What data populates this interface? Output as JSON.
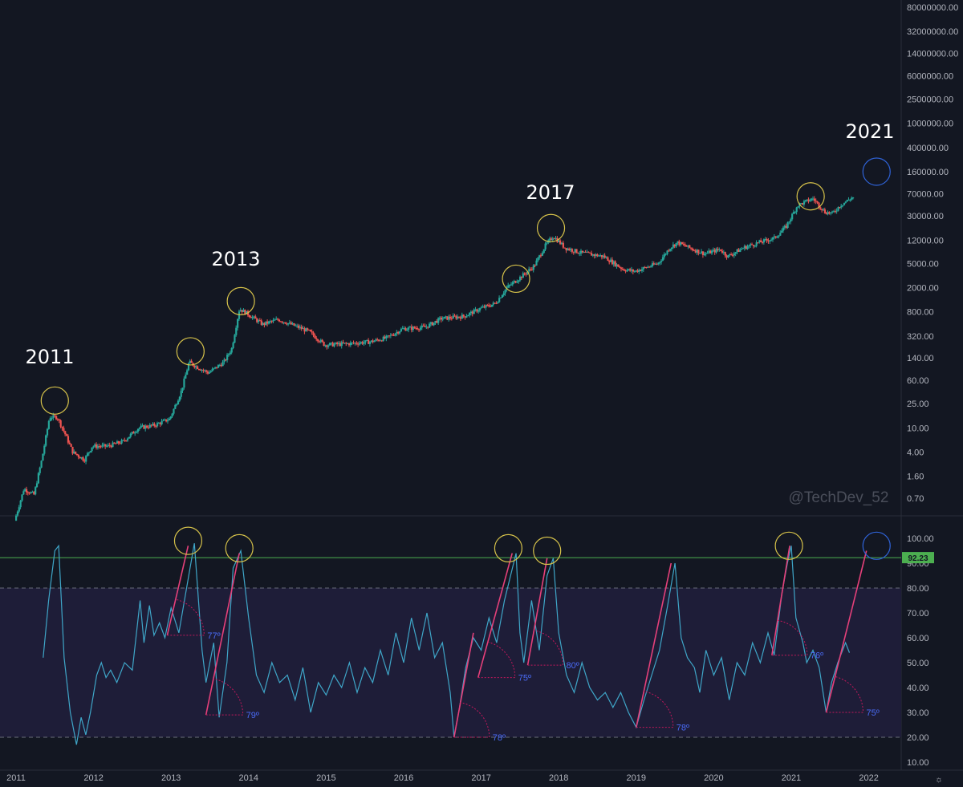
{
  "chart_data": [
    {
      "type": "candlestick",
      "title": "",
      "scale": "log",
      "y_ticks": [
        "80000000.00",
        "32000000.00",
        "14000000.00",
        "6000000.00",
        "2500000.00",
        "1000000.00",
        "400000.00",
        "160000.00",
        "70000.00",
        "30000.00",
        "12000.00",
        "5000.00",
        "2000.00",
        "800.00",
        "320.00",
        "140.00",
        "60.00",
        "25.00",
        "10.00",
        "4.00",
        "1.60",
        "0.70"
      ],
      "x_ticks": [
        "2011",
        "2012",
        "2013",
        "2014",
        "2015",
        "2016",
        "2017",
        "2018",
        "2019",
        "2020",
        "2021",
        "2022"
      ],
      "annotations": [
        "2011",
        "2013",
        "2017",
        "2021"
      ],
      "watermark": "@TechDev_52",
      "anchors": [
        {
          "t": 2011.0,
          "v": 0.3
        },
        {
          "t": 2011.12,
          "v": 1.0
        },
        {
          "t": 2011.25,
          "v": 0.8
        },
        {
          "t": 2011.35,
          "v": 3.0
        },
        {
          "t": 2011.45,
          "v": 15
        },
        {
          "t": 2011.55,
          "v": 15
        },
        {
          "t": 2011.65,
          "v": 8
        },
        {
          "t": 2011.75,
          "v": 4
        },
        {
          "t": 2011.9,
          "v": 3
        },
        {
          "t": 2012.0,
          "v": 5
        },
        {
          "t": 2012.2,
          "v": 5
        },
        {
          "t": 2012.4,
          "v": 6
        },
        {
          "t": 2012.6,
          "v": 10
        },
        {
          "t": 2012.8,
          "v": 11
        },
        {
          "t": 2013.0,
          "v": 14
        },
        {
          "t": 2013.15,
          "v": 40
        },
        {
          "t": 2013.25,
          "v": 120
        },
        {
          "t": 2013.35,
          "v": 100
        },
        {
          "t": 2013.5,
          "v": 80
        },
        {
          "t": 2013.7,
          "v": 120
        },
        {
          "t": 2013.8,
          "v": 200
        },
        {
          "t": 2013.9,
          "v": 900
        },
        {
          "t": 2014.0,
          "v": 750
        },
        {
          "t": 2014.2,
          "v": 500
        },
        {
          "t": 2014.4,
          "v": 600
        },
        {
          "t": 2014.6,
          "v": 480
        },
        {
          "t": 2014.8,
          "v": 380
        },
        {
          "t": 2015.0,
          "v": 230
        },
        {
          "t": 2015.3,
          "v": 240
        },
        {
          "t": 2015.6,
          "v": 260
        },
        {
          "t": 2015.8,
          "v": 300
        },
        {
          "t": 2016.0,
          "v": 420
        },
        {
          "t": 2016.3,
          "v": 450
        },
        {
          "t": 2016.5,
          "v": 620
        },
        {
          "t": 2016.8,
          "v": 680
        },
        {
          "t": 2017.0,
          "v": 900
        },
        {
          "t": 2017.2,
          "v": 1100
        },
        {
          "t": 2017.35,
          "v": 2000
        },
        {
          "t": 2017.5,
          "v": 2800
        },
        {
          "t": 2017.7,
          "v": 4500
        },
        {
          "t": 2017.85,
          "v": 10000
        },
        {
          "t": 2017.95,
          "v": 14000
        },
        {
          "t": 2018.1,
          "v": 9000
        },
        {
          "t": 2018.3,
          "v": 7500
        },
        {
          "t": 2018.6,
          "v": 6500
        },
        {
          "t": 2018.85,
          "v": 4000
        },
        {
          "t": 2019.0,
          "v": 3700
        },
        {
          "t": 2019.3,
          "v": 5000
        },
        {
          "t": 2019.45,
          "v": 9000
        },
        {
          "t": 2019.55,
          "v": 11000
        },
        {
          "t": 2019.75,
          "v": 8500
        },
        {
          "t": 2019.9,
          "v": 7200
        },
        {
          "t": 2020.1,
          "v": 8500
        },
        {
          "t": 2020.2,
          "v": 6500
        },
        {
          "t": 2020.4,
          "v": 9000
        },
        {
          "t": 2020.6,
          "v": 11000
        },
        {
          "t": 2020.8,
          "v": 13000
        },
        {
          "t": 2020.95,
          "v": 20000
        },
        {
          "t": 2021.1,
          "v": 45000
        },
        {
          "t": 2021.3,
          "v": 58000
        },
        {
          "t": 2021.45,
          "v": 35000
        },
        {
          "t": 2021.55,
          "v": 33000
        },
        {
          "t": 2021.65,
          "v": 45000
        },
        {
          "t": 2021.8,
          "v": 60000
        }
      ],
      "highlight_circles": [
        {
          "t": 2011.5,
          "v": 28,
          "color": "#d6c24a"
        },
        {
          "t": 2013.25,
          "v": 180,
          "color": "#d6c24a"
        },
        {
          "t": 2013.9,
          "v": 1200,
          "color": "#d6c24a"
        },
        {
          "t": 2017.45,
          "v": 2800,
          "color": "#d6c24a"
        },
        {
          "t": 2017.9,
          "v": 19000,
          "color": "#d6c24a"
        },
        {
          "t": 2021.25,
          "v": 63000,
          "color": "#d6c24a"
        },
        {
          "t": 2022.1,
          "v": 160000,
          "color": "#2f63d8"
        }
      ]
    },
    {
      "type": "line",
      "title": "",
      "ylim": [
        10,
        105
      ],
      "y_ticks": [
        "100.00",
        "90.00",
        "80.00",
        "70.00",
        "60.00",
        "50.00",
        "40.00",
        "30.00",
        "20.00",
        "10.00"
      ],
      "level_value": "92.23",
      "band": [
        20,
        80
      ],
      "series": [
        {
          "color": "#3fa6c8",
          "points": [
            [
              2011.35,
              52
            ],
            [
              2011.42,
              75
            ],
            [
              2011.5,
              95
            ],
            [
              2011.55,
              97
            ],
            [
              2011.62,
              52
            ],
            [
              2011.7,
              30
            ],
            [
              2011.78,
              17
            ],
            [
              2011.84,
              28
            ],
            [
              2011.9,
              21
            ],
            [
              2011.96,
              30
            ],
            [
              2012.04,
              45
            ],
            [
              2012.1,
              50
            ],
            [
              2012.16,
              44
            ],
            [
              2012.22,
              47
            ],
            [
              2012.3,
              42
            ],
            [
              2012.4,
              50
            ],
            [
              2012.5,
              47
            ],
            [
              2012.6,
              75
            ],
            [
              2012.65,
              58
            ],
            [
              2012.72,
              73
            ],
            [
              2012.78,
              61
            ],
            [
              2012.85,
              66
            ],
            [
              2012.92,
              60
            ],
            [
              2013.0,
              72
            ],
            [
              2013.1,
              62
            ],
            [
              2013.2,
              80
            ],
            [
              2013.3,
              98
            ],
            [
              2013.4,
              55
            ],
            [
              2013.45,
              42
            ],
            [
              2013.55,
              58
            ],
            [
              2013.62,
              28
            ],
            [
              2013.72,
              50
            ],
            [
              2013.8,
              88
            ],
            [
              2013.9,
              95
            ],
            [
              2014.0,
              68
            ],
            [
              2014.1,
              45
            ],
            [
              2014.2,
              38
            ],
            [
              2014.3,
              50
            ],
            [
              2014.4,
              42
            ],
            [
              2014.5,
              45
            ],
            [
              2014.6,
              35
            ],
            [
              2014.7,
              48
            ],
            [
              2014.8,
              30
            ],
            [
              2014.9,
              42
            ],
            [
              2015.0,
              37
            ],
            [
              2015.1,
              45
            ],
            [
              2015.2,
              40
            ],
            [
              2015.3,
              50
            ],
            [
              2015.4,
              38
            ],
            [
              2015.5,
              48
            ],
            [
              2015.6,
              42
            ],
            [
              2015.7,
              55
            ],
            [
              2015.8,
              45
            ],
            [
              2015.9,
              62
            ],
            [
              2016.0,
              50
            ],
            [
              2016.1,
              68
            ],
            [
              2016.2,
              55
            ],
            [
              2016.3,
              70
            ],
            [
              2016.4,
              52
            ],
            [
              2016.5,
              58
            ],
            [
              2016.6,
              38
            ],
            [
              2016.65,
              20
            ],
            [
              2016.72,
              32
            ],
            [
              2016.8,
              48
            ],
            [
              2016.9,
              60
            ],
            [
              2017.0,
              55
            ],
            [
              2017.1,
              68
            ],
            [
              2017.2,
              58
            ],
            [
              2017.3,
              75
            ],
            [
              2017.45,
              94
            ],
            [
              2017.5,
              62
            ],
            [
              2017.55,
              50
            ],
            [
              2017.65,
              75
            ],
            [
              2017.75,
              55
            ],
            [
              2017.85,
              85
            ],
            [
              2017.93,
              92
            ],
            [
              2018.0,
              62
            ],
            [
              2018.1,
              45
            ],
            [
              2018.2,
              38
            ],
            [
              2018.3,
              50
            ],
            [
              2018.4,
              40
            ],
            [
              2018.5,
              35
            ],
            [
              2018.6,
              38
            ],
            [
              2018.7,
              32
            ],
            [
              2018.8,
              38
            ],
            [
              2018.9,
              30
            ],
            [
              2019.0,
              24
            ],
            [
              2019.1,
              35
            ],
            [
              2019.2,
              45
            ],
            [
              2019.3,
              55
            ],
            [
              2019.4,
              72
            ],
            [
              2019.5,
              90
            ],
            [
              2019.58,
              60
            ],
            [
              2019.66,
              52
            ],
            [
              2019.75,
              48
            ],
            [
              2019.82,
              38
            ],
            [
              2019.9,
              55
            ],
            [
              2020.0,
              45
            ],
            [
              2020.1,
              52
            ],
            [
              2020.2,
              35
            ],
            [
              2020.3,
              50
            ],
            [
              2020.4,
              45
            ],
            [
              2020.5,
              58
            ],
            [
              2020.6,
              50
            ],
            [
              2020.7,
              62
            ],
            [
              2020.78,
              53
            ],
            [
              2020.88,
              78
            ],
            [
              2020.95,
              90
            ],
            [
              2021.0,
              97
            ],
            [
              2021.06,
              68
            ],
            [
              2021.15,
              58
            ],
            [
              2021.2,
              50
            ],
            [
              2021.28,
              55
            ],
            [
              2021.36,
              48
            ],
            [
              2021.45,
              30
            ],
            [
              2021.52,
              42
            ],
            [
              2021.6,
              50
            ],
            [
              2021.7,
              58
            ],
            [
              2021.75,
              54
            ]
          ]
        }
      ],
      "trend_lines": [
        {
          "from": [
            2012.95,
            61
          ],
          "to": [
            2013.22,
            97
          ],
          "arc_r": 46,
          "label": "77º"
        },
        {
          "from": [
            2013.45,
            29
          ],
          "to": [
            2013.88,
            94
          ],
          "arc_r": 46,
          "label": "79º"
        },
        {
          "from": [
            2016.65,
            20
          ],
          "to": [
            2016.9,
            62
          ],
          "arc_r": 44,
          "label": "78º"
        },
        {
          "from": [
            2016.96,
            44
          ],
          "to": [
            2017.4,
            94
          ],
          "arc_r": 46,
          "label": "75º"
        },
        {
          "from": [
            2017.6,
            49
          ],
          "to": [
            2017.85,
            92
          ],
          "arc_r": 44,
          "label": "80º"
        },
        {
          "from": [
            2019.0,
            24
          ],
          "to": [
            2019.45,
            90
          ],
          "arc_r": 46,
          "label": "78º"
        },
        {
          "from": [
            2020.75,
            53
          ],
          "to": [
            2020.98,
            97
          ],
          "arc_r": 44,
          "label": "76º"
        },
        {
          "from": [
            2021.45,
            30
          ],
          "to": [
            2021.97,
            95
          ],
          "arc_r": 46,
          "label": "75º"
        }
      ],
      "highlight_circles": [
        {
          "t": 2013.22,
          "v": 99,
          "color": "#d6c24a"
        },
        {
          "t": 2013.88,
          "v": 96,
          "color": "#d6c24a"
        },
        {
          "t": 2017.35,
          "v": 96,
          "color": "#d6c24a"
        },
        {
          "t": 2017.85,
          "v": 95,
          "color": "#d6c24a"
        },
        {
          "t": 2020.97,
          "v": 97,
          "color": "#d6c24a"
        },
        {
          "t": 2022.1,
          "v": 97,
          "color": "#2f63d8"
        }
      ]
    }
  ]
}
